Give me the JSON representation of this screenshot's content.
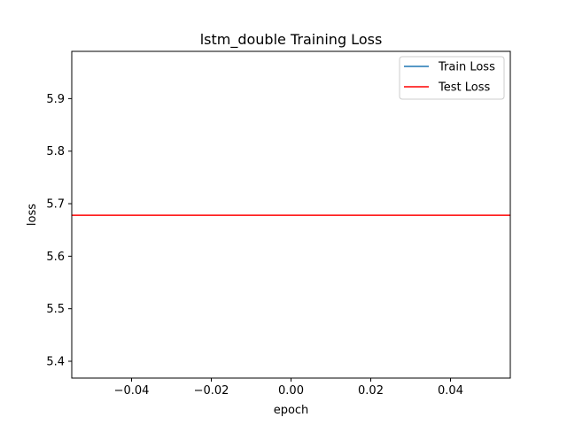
{
  "chart_data": {
    "type": "line",
    "title": "lstm_double Training Loss",
    "xlabel": "epoch",
    "ylabel": "loss",
    "xlim": [
      -0.055,
      0.055
    ],
    "ylim": [
      5.368,
      5.99
    ],
    "xticks": [
      -0.04,
      -0.02,
      0.0,
      0.02,
      0.04
    ],
    "xtick_labels": [
      "−0.04",
      "−0.02",
      "0.00",
      "0.02",
      "0.04"
    ],
    "yticks": [
      5.4,
      5.5,
      5.6,
      5.7,
      5.8,
      5.9
    ],
    "ytick_labels": [
      "5.4",
      "5.5",
      "5.6",
      "5.7",
      "5.8",
      "5.9"
    ],
    "grid": false,
    "legend_position": "top-right",
    "series": [
      {
        "name": "Train Loss",
        "color": "#1f77b4",
        "x": [
          0
        ],
        "y": [
          5.678
        ]
      },
      {
        "name": "Test Loss",
        "color": "#ff0000",
        "x": [
          0
        ],
        "y": [
          5.678
        ],
        "style": "horizontal-line"
      }
    ]
  }
}
